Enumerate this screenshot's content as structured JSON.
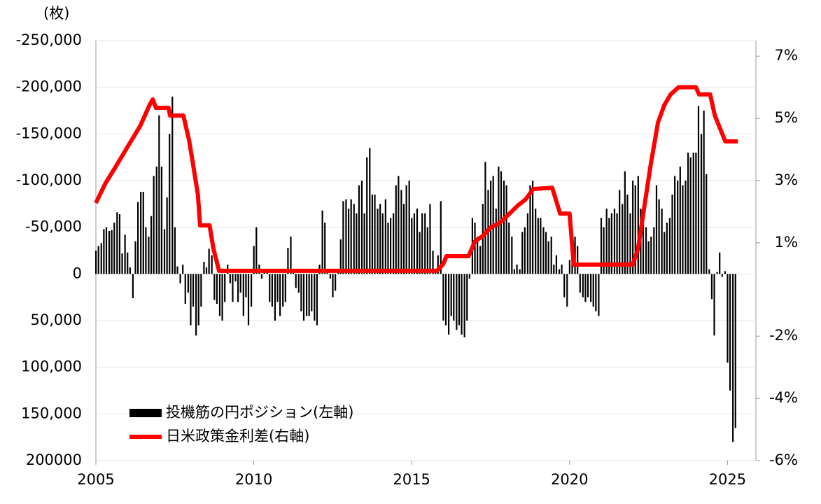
{
  "chart_data": {
    "type": "bar-line",
    "unit_label": "(枚)",
    "xlim": [
      2005,
      2025.9
    ],
    "xticks": [
      2005,
      2010,
      2015,
      2020,
      2025
    ],
    "ylim": [
      200000,
      -250000
    ],
    "yticks": [
      200000,
      {
        "value": 150000,
        "label": "150,000"
      },
      {
        "value": 100000,
        "label": "100,000"
      },
      {
        "value": 50000,
        "label": "50,000"
      },
      0,
      {
        "value": -50000,
        "label": "-50,000"
      },
      {
        "value": -100000,
        "label": "-100,000"
      },
      {
        "value": -150000,
        "label": "-150,000"
      },
      {
        "value": -200000,
        "label": "-200,000"
      },
      {
        "value": -250000,
        "label": "-250,000"
      }
    ],
    "y2lim": [
      -6,
      7.5
    ],
    "y2ticks": [
      {
        "value": 7,
        "label": "7%"
      },
      {
        "value": 5,
        "label": "5%"
      },
      {
        "value": 3,
        "label": "3%"
      },
      {
        "value": 1,
        "label": "1%"
      },
      {
        "value": -2,
        "label": "-2%"
      },
      {
        "value": -4,
        "label": "-4%"
      },
      {
        "value": -6,
        "label": "-6%"
      }
    ],
    "negative_tick_color": "#e8262a",
    "grid": true,
    "legend": "lower left",
    "series": [
      {
        "name": "投機筋の円ポジション(左軸)",
        "type": "bar",
        "color": "#000000",
        "x": [
          2005.0,
          2005.08,
          2005.17,
          2005.25,
          2005.33,
          2005.42,
          2005.5,
          2005.58,
          2005.67,
          2005.75,
          2005.83,
          2005.92,
          2006.0,
          2006.08,
          2006.17,
          2006.25,
          2006.33,
          2006.42,
          2006.5,
          2006.58,
          2006.67,
          2006.75,
          2006.83,
          2006.92,
          2007.0,
          2007.08,
          2007.17,
          2007.25,
          2007.33,
          2007.42,
          2007.5,
          2007.58,
          2007.67,
          2007.75,
          2007.83,
          2007.92,
          2008.0,
          2008.08,
          2008.17,
          2008.25,
          2008.33,
          2008.42,
          2008.5,
          2008.58,
          2008.67,
          2008.75,
          2008.83,
          2008.92,
          2009.0,
          2009.08,
          2009.17,
          2009.25,
          2009.33,
          2009.42,
          2009.5,
          2009.58,
          2009.67,
          2009.75,
          2009.83,
          2009.92,
          2010.0,
          2010.08,
          2010.17,
          2010.25,
          2010.33,
          2010.42,
          2010.5,
          2010.58,
          2010.67,
          2010.75,
          2010.83,
          2010.92,
          2011.0,
          2011.08,
          2011.17,
          2011.25,
          2011.33,
          2011.42,
          2011.5,
          2011.58,
          2011.67,
          2011.75,
          2011.83,
          2011.92,
          2012.0,
          2012.08,
          2012.17,
          2012.25,
          2012.33,
          2012.42,
          2012.5,
          2012.58,
          2012.67,
          2012.75,
          2012.83,
          2012.92,
          2013.0,
          2013.08,
          2013.17,
          2013.25,
          2013.33,
          2013.42,
          2013.5,
          2013.58,
          2013.67,
          2013.75,
          2013.83,
          2013.92,
          2014.0,
          2014.08,
          2014.17,
          2014.25,
          2014.33,
          2014.42,
          2014.5,
          2014.58,
          2014.67,
          2014.75,
          2014.83,
          2014.92,
          2015.0,
          2015.08,
          2015.17,
          2015.25,
          2015.33,
          2015.42,
          2015.5,
          2015.58,
          2015.67,
          2015.75,
          2015.83,
          2015.92,
          2016.0,
          2016.08,
          2016.17,
          2016.25,
          2016.33,
          2016.42,
          2016.5,
          2016.58,
          2016.67,
          2016.75,
          2016.83,
          2016.92,
          2017.0,
          2017.08,
          2017.17,
          2017.25,
          2017.33,
          2017.42,
          2017.5,
          2017.58,
          2017.67,
          2017.75,
          2017.83,
          2017.92,
          2018.0,
          2018.08,
          2018.17,
          2018.25,
          2018.33,
          2018.42,
          2018.5,
          2018.58,
          2018.67,
          2018.75,
          2018.83,
          2018.92,
          2019.0,
          2019.08,
          2019.17,
          2019.25,
          2019.33,
          2019.42,
          2019.5,
          2019.58,
          2019.67,
          2019.75,
          2019.83,
          2019.92,
          2020.0,
          2020.08,
          2020.17,
          2020.25,
          2020.33,
          2020.42,
          2020.5,
          2020.58,
          2020.67,
          2020.75,
          2020.83,
          2020.92,
          2021.0,
          2021.08,
          2021.17,
          2021.25,
          2021.33,
          2021.42,
          2021.5,
          2021.58,
          2021.67,
          2021.75,
          2021.83,
          2021.92,
          2022.0,
          2022.08,
          2022.17,
          2022.25,
          2022.33,
          2022.42,
          2022.5,
          2022.58,
          2022.67,
          2022.75,
          2022.83,
          2022.92,
          2023.0,
          2023.08,
          2023.17,
          2023.25,
          2023.33,
          2023.42,
          2023.5,
          2023.58,
          2023.67,
          2023.75,
          2023.83,
          2023.92,
          2024.0,
          2024.08,
          2024.17,
          2024.25,
          2024.33,
          2024.42,
          2024.5,
          2024.58,
          2024.67,
          2024.75,
          2024.83,
          2024.92,
          2025.0,
          2025.08,
          2025.17,
          2025.25
        ],
        "values": [
          -25000,
          -30000,
          -33000,
          -48000,
          -50000,
          -46000,
          -47000,
          -55000,
          -66000,
          -64000,
          -22000,
          -42000,
          -23000,
          -7000,
          26000,
          -35000,
          -77000,
          -88000,
          -88000,
          -50000,
          -40000,
          -62000,
          -105000,
          -115000,
          -170000,
          -115000,
          -48000,
          -82000,
          -150000,
          -190000,
          -50000,
          -8000,
          10000,
          -10000,
          32000,
          20000,
          55000,
          35000,
          66000,
          55000,
          35000,
          -13000,
          -7000,
          -27000,
          -20000,
          28000,
          32000,
          45000,
          50000,
          30000,
          -10000,
          10000,
          30000,
          8000,
          30000,
          20000,
          45000,
          25000,
          55000,
          35000,
          -30000,
          -50000,
          -10000,
          5000,
          -5000,
          -2000,
          30000,
          35000,
          50000,
          30000,
          45000,
          35000,
          30000,
          -28000,
          -40000,
          -5000,
          15000,
          20000,
          40000,
          50000,
          45000,
          45000,
          40000,
          50000,
          55000,
          -10000,
          -68000,
          -55000,
          -5000,
          5000,
          25000,
          18000,
          -5000,
          -37000,
          -78000,
          -80000,
          -70000,
          -80000,
          -75000,
          -65000,
          -95000,
          -100000,
          -65000,
          -125000,
          -135000,
          -85000,
          -85000,
          -70000,
          -75000,
          -65000,
          -80000,
          -55000,
          -60000,
          -65000,
          -95000,
          -105000,
          -90000,
          -75000,
          -95000,
          -100000,
          -60000,
          -65000,
          -70000,
          -45000,
          -65000,
          -65000,
          -50000,
          -75000,
          -25000,
          -5000,
          -20000,
          -78000,
          50000,
          55000,
          65000,
          45000,
          50000,
          60000,
          55000,
          65000,
          68000,
          50000,
          5000,
          -60000,
          -55000,
          -40000,
          -30000,
          -75000,
          -120000,
          -90000,
          -100000,
          -105000,
          -70000,
          -115000,
          -110000,
          -100000,
          -95000,
          -55000,
          -40000,
          -5000,
          -10000,
          -5000,
          -45000,
          -50000,
          -65000,
          -95000,
          -100000,
          -70000,
          -60000,
          -60000,
          -50000,
          -45000,
          -35000,
          -40000,
          -10000,
          -20000,
          -5000,
          -10000,
          25000,
          35000,
          -15000,
          -20000,
          -40000,
          -30000,
          20000,
          25000,
          30000,
          25000,
          30000,
          35000,
          40000,
          45000,
          -60000,
          -50000,
          -70000,
          -60000,
          -65000,
          -70000,
          -65000,
          -90000,
          -75000,
          -110000,
          -85000,
          -65000,
          -100000,
          -95000,
          -105000,
          -70000,
          -60000,
          -50000,
          -35000,
          -40000,
          -50000,
          -95000,
          -80000,
          -70000,
          -45000,
          -55000,
          -60000,
          -85000,
          -105000,
          -100000,
          -115000,
          -95000,
          -100000,
          -130000,
          -125000,
          -130000,
          -130000,
          -180000,
          -150000,
          -175000,
          -107000,
          -5000,
          27000,
          66000,
          -2000,
          -23000,
          3000,
          -3000,
          95000,
          125000,
          180000,
          165000
        ]
      },
      {
        "name": "日米政策金利差(右軸)",
        "type": "line",
        "axis": "y2",
        "color": "#ff0000",
        "x": [
          2005.0,
          2005.3,
          2005.6,
          2006.0,
          2006.4,
          2006.7,
          2006.8,
          2006.9,
          2007.3,
          2007.35,
          2007.77,
          2007.95,
          2008.06,
          2008.23,
          2008.3,
          2008.6,
          2008.72,
          2008.9,
          2015.8,
          2016.0,
          2016.1,
          2016.8,
          2017.0,
          2017.25,
          2017.5,
          2017.8,
          2018.1,
          2018.35,
          2018.6,
          2018.85,
          2019.45,
          2019.7,
          2020.0,
          2020.13,
          2022.0,
          2022.17,
          2022.35,
          2022.57,
          2022.8,
          2023.0,
          2023.2,
          2023.45,
          2024.0,
          2024.1,
          2024.45,
          2024.6,
          2024.78,
          2024.93,
          2025.33
        ],
        "values": [
          2.28,
          2.91,
          3.4,
          4.08,
          4.75,
          5.43,
          5.61,
          5.34,
          5.34,
          5.09,
          5.09,
          4.3,
          3.63,
          2.55,
          1.56,
          1.56,
          0.82,
          0.1,
          0.1,
          0.32,
          0.57,
          0.57,
          1.04,
          1.22,
          1.49,
          1.65,
          1.94,
          2.19,
          2.39,
          2.73,
          2.77,
          1.94,
          1.94,
          0.3,
          0.3,
          0.82,
          2.05,
          3.52,
          4.87,
          5.43,
          5.77,
          6.0,
          6.0,
          5.77,
          5.77,
          5.09,
          4.64,
          4.26,
          4.26
        ]
      }
    ]
  }
}
